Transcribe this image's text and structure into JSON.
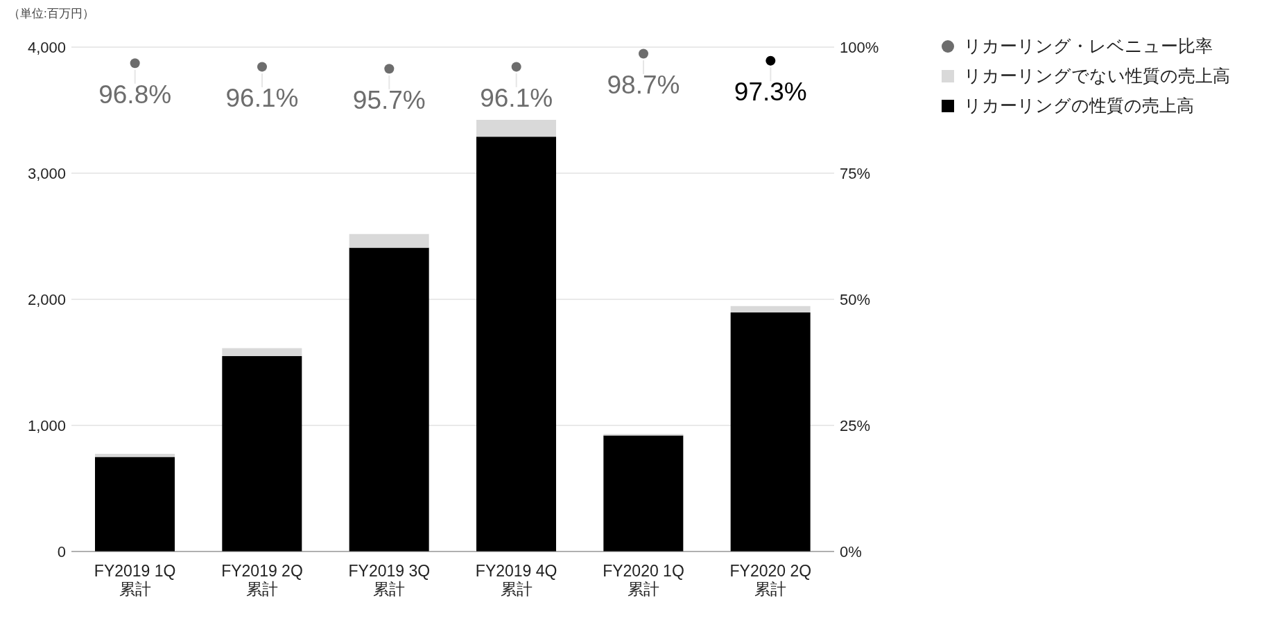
{
  "chart_data": {
    "type": "bar",
    "stacked": true,
    "categories": [
      "FY2019 1Q\n累計",
      "FY2019 2Q\n累計",
      "FY2019 3Q\n累計",
      "FY2019 4Q\n累計",
      "FY2020 1Q\n累計",
      "FY2020 2Q\n累計"
    ],
    "series": [
      {
        "name": "リカーリングの性質の売上高",
        "color": "#000000",
        "values": [
          750,
          1550,
          2410,
          3290,
          920,
          1895
        ]
      },
      {
        "name": "リカーリングでない性質の売上高",
        "color": "#d9d9d9",
        "values": [
          25,
          63,
          108,
          133,
          12,
          52
        ]
      },
      {
        "name": "リカーリング・レベニュー比率",
        "type": "scatter",
        "axis": "y2",
        "colors": [
          "#6d6d6d",
          "#6d6d6d",
          "#6d6d6d",
          "#6d6d6d",
          "#6d6d6d",
          "#000000"
        ],
        "values": [
          96.8,
          96.1,
          95.7,
          96.1,
          98.7,
          97.3
        ],
        "value_labels": [
          "96.8%",
          "96.1%",
          "95.7%",
          "96.1%",
          "98.7%",
          "97.3%"
        ]
      }
    ],
    "ylim": [
      0,
      4000
    ],
    "yticks": [
      0,
      {
        "value": 1000,
        "label": "1,000"
      },
      {
        "value": 2000,
        "label": "2,000"
      },
      {
        "value": 3000,
        "label": "3,000"
      },
      {
        "value": 4000,
        "label": "4,000"
      }
    ],
    "y2lim": [
      0,
      100
    ],
    "y2ticks": [
      {
        "value": 0,
        "label": "0%"
      },
      {
        "value": 25,
        "label": "25%"
      },
      {
        "value": 50,
        "label": "50%"
      },
      {
        "value": 75,
        "label": "75%"
      },
      {
        "value": 100,
        "label": "100%"
      }
    ],
    "grid": "y",
    "legend": "top right",
    "marker": "circle",
    "annotations": [
      "（単位:百万円）"
    ]
  }
}
